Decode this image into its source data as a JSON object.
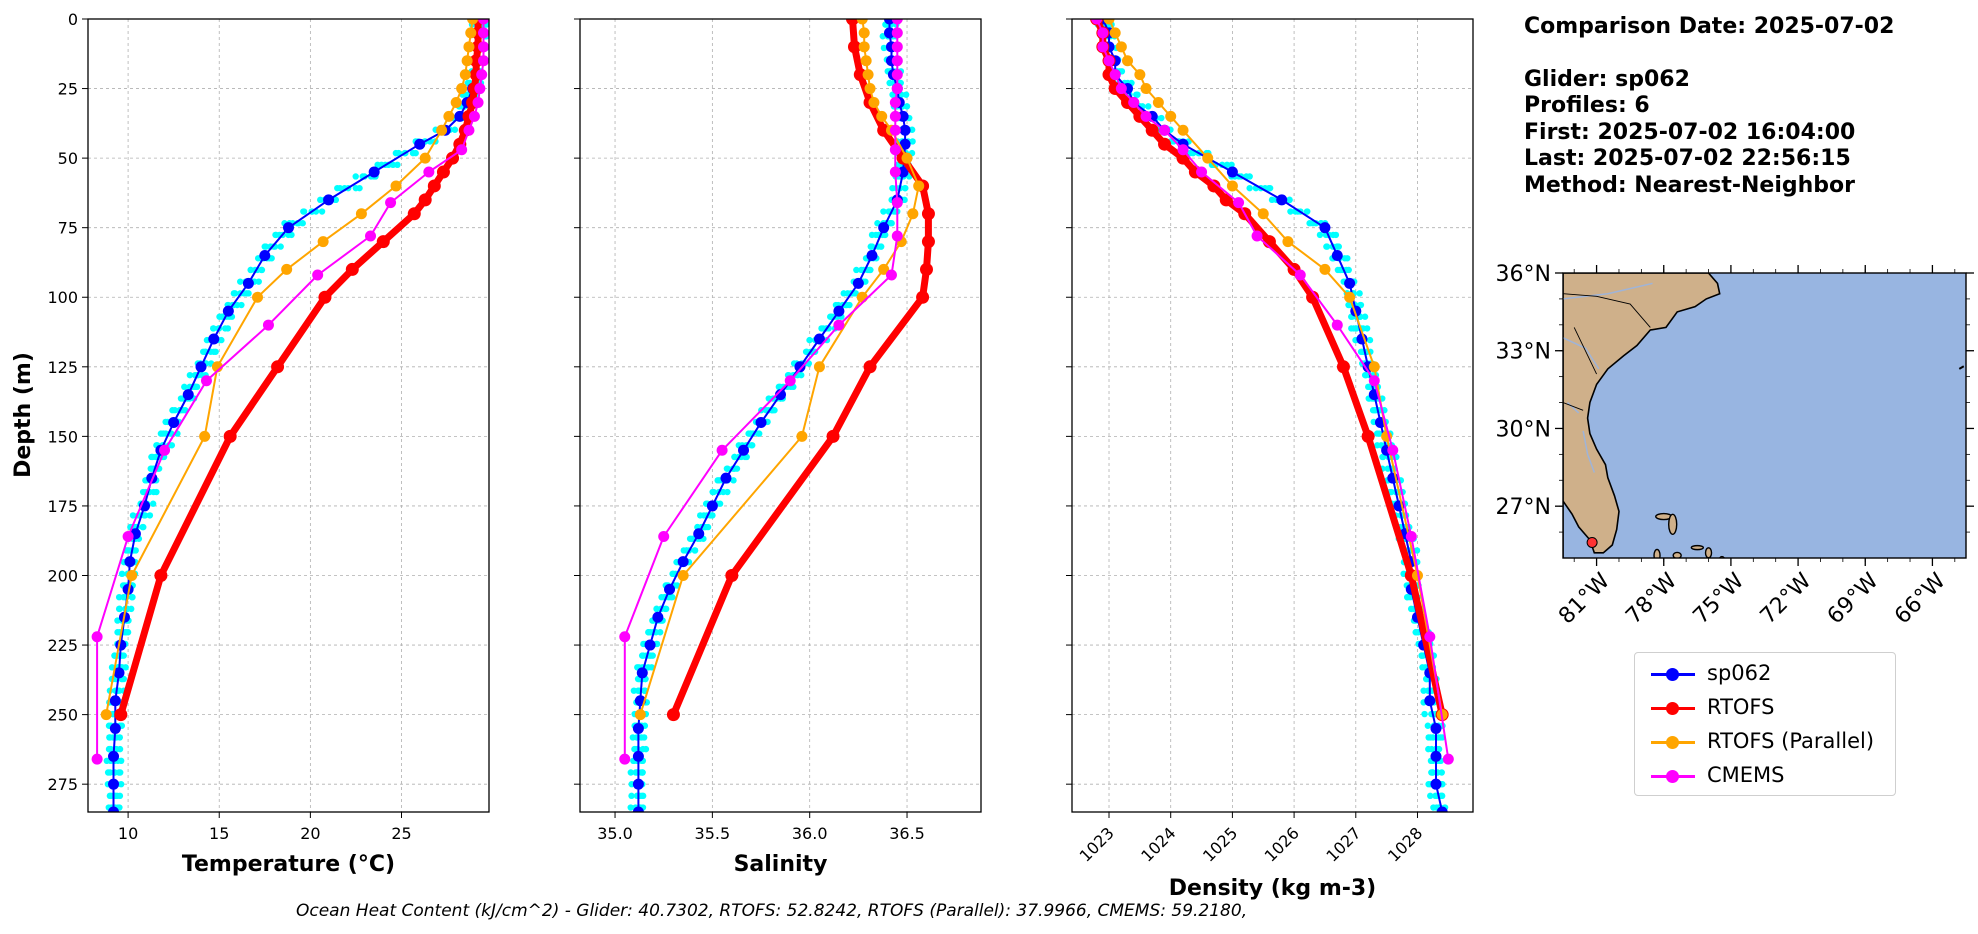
{
  "info": {
    "comparison_date": "Comparison Date: 2025-07-02",
    "glider": "Glider: sp062",
    "profiles": "Profiles: 6",
    "first": "First: 2025-07-02 16:04:00",
    "last": "Last: 2025-07-02 22:56:15",
    "method": "Method: Nearest-Neighbor"
  },
  "footer": "Ocean Heat Content (kJ/cm^2) - Glider: 40.7302,  RTOFS: 52.8242,  RTOFS (Parallel): 37.9966,  CMEMS: 59.2180,",
  "colors": {
    "glider": "#0000ff",
    "glider_raw": "#00ffff",
    "rtofs": "#ff0000",
    "rtofs_parallel": "#ffa500",
    "cmems": "#ff00ff",
    "ocean": "#98b5e1",
    "land": "#cfb08a",
    "grid": "#b0b0b0"
  },
  "legend": [
    {
      "label": "sp062",
      "color": "#0000ff"
    },
    {
      "label": "RTOFS",
      "color": "#ff0000"
    },
    {
      "label": "RTOFS (Parallel)",
      "color": "#ffa500"
    },
    {
      "label": "CMEMS",
      "color": "#ff00ff"
    }
  ],
  "map": {
    "lat_labels": [
      "36°N",
      "33°N",
      "30°N",
      "27°N"
    ],
    "lon_labels": [
      "81°W",
      "78°W",
      "75°W",
      "72°W",
      "69°W",
      "66°W"
    ],
    "lon_range": [
      -82.5,
      -64.5
    ],
    "lat_range": [
      25.0,
      36.0
    ],
    "glider_position": {
      "lon": -81.2,
      "lat": 25.6
    }
  },
  "chart_data": [
    {
      "type": "line",
      "xlabel": "Temperature (°C)",
      "ylabel": "Depth (m)",
      "xlim": [
        7.8,
        29.8
      ],
      "ylim": [
        285,
        0
      ],
      "xticks": [
        10,
        15,
        20,
        25
      ],
      "yticks": [
        0,
        25,
        50,
        75,
        100,
        125,
        150,
        175,
        200,
        225,
        250,
        275
      ],
      "grid": true,
      "series": [
        {
          "name": "sp062",
          "depth": [
            0,
            5,
            10,
            15,
            20,
            25,
            30,
            35,
            40,
            45,
            55,
            65,
            75,
            85,
            95,
            105,
            115,
            125,
            135,
            145,
            155,
            165,
            175,
            185,
            195,
            205,
            215,
            225,
            235,
            245,
            255,
            265,
            275,
            285
          ],
          "values": [
            29.3,
            29.3,
            29.3,
            29.2,
            29.1,
            28.9,
            28.6,
            28.2,
            27.4,
            26.0,
            23.5,
            21.0,
            18.8,
            17.5,
            16.6,
            15.5,
            14.7,
            14.0,
            13.3,
            12.5,
            11.8,
            11.3,
            10.9,
            10.4,
            10.1,
            10.0,
            9.8,
            9.6,
            9.5,
            9.3,
            9.3,
            9.2,
            9.2,
            9.2
          ]
        },
        {
          "name": "RTOFS",
          "depth": [
            0,
            5,
            10,
            15,
            20,
            25,
            30,
            35,
            40,
            45,
            50,
            55,
            60,
            65,
            70,
            80,
            90,
            100,
            125,
            150,
            200,
            250
          ],
          "values": [
            29.2,
            29.2,
            29.2,
            29.1,
            29.1,
            29.0,
            28.9,
            28.7,
            28.5,
            28.2,
            27.8,
            27.3,
            26.8,
            26.3,
            25.7,
            24.0,
            22.3,
            20.8,
            18.2,
            15.6,
            11.8,
            9.6
          ]
        },
        {
          "name": "RTOFS (Parallel)",
          "depth": [
            0,
            5,
            10,
            15,
            20,
            25,
            30,
            35,
            40,
            50,
            60,
            70,
            80,
            90,
            100,
            125,
            150,
            200,
            250
          ],
          "values": [
            28.9,
            28.8,
            28.7,
            28.6,
            28.5,
            28.3,
            28.0,
            27.6,
            27.2,
            26.3,
            24.7,
            22.8,
            20.7,
            18.7,
            17.1,
            14.9,
            14.2,
            10.2,
            8.8
          ]
        },
        {
          "name": "CMEMS",
          "depth": [
            0,
            5,
            10,
            15,
            20,
            25,
            30,
            35,
            40,
            47,
            55,
            66,
            78,
            92,
            110,
            130,
            155,
            186,
            222,
            266
          ],
          "values": [
            29.5,
            29.5,
            29.5,
            29.5,
            29.4,
            29.3,
            29.2,
            29.0,
            28.7,
            28.3,
            26.5,
            24.4,
            23.3,
            20.4,
            17.7,
            14.3,
            12.0,
            10.0,
            8.3,
            8.3
          ]
        }
      ]
    },
    {
      "type": "line",
      "xlabel": "Salinity",
      "xlim": [
        34.82,
        36.88
      ],
      "ylim": [
        285,
        0
      ],
      "xticks": [
        35.0,
        35.5,
        36.0,
        36.5
      ],
      "grid": true,
      "series": [
        {
          "name": "sp062",
          "depth": [
            0,
            5,
            10,
            15,
            20,
            25,
            30,
            35,
            40,
            45,
            55,
            65,
            75,
            85,
            95,
            105,
            115,
            125,
            135,
            145,
            155,
            165,
            175,
            185,
            195,
            205,
            215,
            225,
            235,
            245,
            255,
            265,
            275,
            285
          ],
          "values": [
            36.41,
            36.41,
            36.42,
            36.42,
            36.43,
            36.45,
            36.46,
            36.48,
            36.49,
            36.49,
            36.48,
            36.45,
            36.38,
            36.32,
            36.25,
            36.15,
            36.05,
            35.95,
            35.85,
            35.75,
            35.66,
            35.57,
            35.5,
            35.43,
            35.35,
            35.28,
            35.22,
            35.18,
            35.14,
            35.13,
            35.12,
            35.12,
            35.12,
            35.12
          ]
        },
        {
          "name": "RTOFS",
          "depth": [
            0,
            10,
            20,
            30,
            40,
            50,
            60,
            70,
            80,
            90,
            100,
            125,
            150,
            200,
            250
          ],
          "values": [
            36.22,
            36.23,
            36.26,
            36.31,
            36.38,
            36.48,
            36.58,
            36.61,
            36.61,
            36.6,
            36.58,
            36.31,
            36.12,
            35.6,
            35.3
          ]
        },
        {
          "name": "RTOFS (Parallel)",
          "depth": [
            0,
            5,
            10,
            15,
            20,
            25,
            30,
            35,
            40,
            50,
            60,
            70,
            80,
            90,
            100,
            125,
            150,
            200,
            250
          ],
          "values": [
            36.27,
            36.28,
            36.28,
            36.29,
            36.3,
            36.31,
            36.33,
            36.37,
            36.42,
            36.5,
            36.56,
            36.53,
            36.47,
            36.38,
            36.27,
            36.05,
            35.96,
            35.35,
            35.13
          ]
        },
        {
          "name": "CMEMS",
          "depth": [
            0,
            5,
            10,
            15,
            20,
            25,
            30,
            35,
            40,
            47,
            55,
            66,
            78,
            92,
            110,
            130,
            155,
            186,
            222,
            266
          ],
          "values": [
            36.45,
            36.45,
            36.45,
            36.45,
            36.45,
            36.45,
            36.44,
            36.44,
            36.44,
            36.44,
            36.44,
            36.45,
            36.45,
            36.42,
            36.15,
            35.9,
            35.55,
            35.25,
            35.05,
            35.05
          ]
        }
      ]
    },
    {
      "type": "line",
      "xlabel": "Density (kg m-3)",
      "xlim": [
        1022.4,
        1028.9
      ],
      "ylim": [
        285,
        0
      ],
      "xticks": [
        1023,
        1024,
        1025,
        1026,
        1027,
        1028
      ],
      "grid": true,
      "series": [
        {
          "name": "sp062",
          "depth": [
            0,
            5,
            10,
            15,
            20,
            25,
            30,
            35,
            40,
            45,
            55,
            65,
            75,
            85,
            95,
            105,
            115,
            125,
            135,
            145,
            155,
            165,
            175,
            185,
            195,
            205,
            215,
            225,
            235,
            245,
            255,
            265,
            275,
            285
          ],
          "values": [
            1022.9,
            1023.0,
            1023.0,
            1023.1,
            1023.1,
            1023.3,
            1023.4,
            1023.7,
            1023.9,
            1024.2,
            1025.0,
            1025.8,
            1026.5,
            1026.7,
            1026.9,
            1027.0,
            1027.1,
            1027.2,
            1027.3,
            1027.4,
            1027.5,
            1027.6,
            1027.7,
            1027.8,
            1027.9,
            1027.9,
            1028.0,
            1028.1,
            1028.2,
            1028.2,
            1028.3,
            1028.3,
            1028.3,
            1028.4
          ]
        },
        {
          "name": "RTOFS",
          "depth": [
            0,
            5,
            10,
            15,
            20,
            25,
            30,
            35,
            40,
            45,
            50,
            55,
            60,
            65,
            70,
            80,
            90,
            100,
            125,
            150,
            200,
            250
          ],
          "values": [
            1022.8,
            1022.9,
            1022.9,
            1023.0,
            1023.0,
            1023.1,
            1023.3,
            1023.5,
            1023.7,
            1023.9,
            1024.2,
            1024.4,
            1024.7,
            1024.9,
            1025.2,
            1025.6,
            1026.0,
            1026.3,
            1026.8,
            1027.2,
            1027.9,
            1028.4
          ]
        },
        {
          "name": "RTOFS (Parallel)",
          "depth": [
            0,
            5,
            10,
            15,
            20,
            25,
            30,
            35,
            40,
            50,
            60,
            70,
            80,
            90,
            100,
            125,
            150,
            200,
            250
          ],
          "values": [
            1023.0,
            1023.1,
            1023.2,
            1023.3,
            1023.5,
            1023.6,
            1023.8,
            1024.0,
            1024.2,
            1024.6,
            1025.0,
            1025.5,
            1025.9,
            1026.5,
            1026.9,
            1027.3,
            1027.5,
            1028.0,
            1028.4
          ]
        },
        {
          "name": "CMEMS",
          "depth": [
            0,
            5,
            10,
            15,
            20,
            25,
            30,
            35,
            40,
            47,
            55,
            66,
            78,
            92,
            110,
            130,
            155,
            186,
            222,
            266
          ],
          "values": [
            1022.8,
            1022.9,
            1022.9,
            1023.0,
            1023.1,
            1023.2,
            1023.4,
            1023.6,
            1023.9,
            1024.2,
            1024.5,
            1025.1,
            1025.4,
            1026.1,
            1026.7,
            1027.3,
            1027.6,
            1027.9,
            1028.2,
            1028.5
          ]
        }
      ]
    }
  ]
}
